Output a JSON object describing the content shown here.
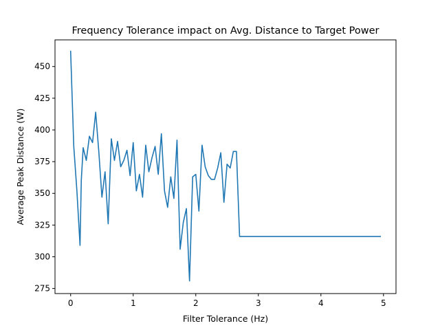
{
  "chart_data": {
    "type": "line",
    "title": "Frequency Tolerance impact on Avg. Distance to Target Power",
    "xlabel": "Filter Tolerance (Hz)",
    "ylabel": "Average Peak Distance (W)",
    "xlim": [
      -0.25,
      5.2
    ],
    "ylim": [
      271,
      471
    ],
    "xticks": [
      0,
      1,
      2,
      3,
      4,
      5
    ],
    "xtick_labels": [
      "0",
      "1",
      "2",
      "3",
      "4",
      "5"
    ],
    "yticks": [
      275,
      300,
      325,
      350,
      375,
      400,
      425,
      450
    ],
    "ytick_labels": [
      "275",
      "300",
      "325",
      "350",
      "375",
      "400",
      "425",
      "450"
    ],
    "grid": false,
    "series": [
      {
        "color": "#1f77b4",
        "x": [
          0.0,
          0.05,
          0.1,
          0.15,
          0.17,
          0.2,
          0.25,
          0.3,
          0.35,
          0.4,
          0.45,
          0.5,
          0.55,
          0.6,
          0.65,
          0.7,
          0.75,
          0.8,
          0.85,
          0.9,
          0.95,
          1.0,
          1.05,
          1.1,
          1.15,
          1.2,
          1.25,
          1.3,
          1.35,
          1.4,
          1.45,
          1.5,
          1.55,
          1.6,
          1.65,
          1.7,
          1.75,
          1.8,
          1.85,
          1.9,
          1.95,
          2.0,
          2.05,
          2.1,
          2.15,
          2.2,
          2.25,
          2.3,
          2.35,
          2.4,
          2.45,
          2.5,
          2.55,
          2.6,
          2.65,
          2.7,
          3.0,
          3.5,
          4.0,
          4.5,
          4.95
        ],
        "y": [
          462,
          387,
          352,
          309,
          360,
          386,
          376,
          395,
          390,
          414,
          383,
          347,
          367,
          326,
          393,
          376,
          391,
          371,
          376,
          384,
          364,
          390,
          352,
          365,
          347,
          388,
          367,
          378,
          387,
          365,
          397,
          352,
          339,
          363,
          346,
          392,
          306,
          327,
          338,
          281,
          363,
          365,
          336,
          388,
          371,
          364,
          361,
          361,
          370,
          382,
          343,
          373,
          370,
          383,
          383,
          316,
          316,
          316,
          316,
          316,
          316
        ]
      }
    ]
  }
}
